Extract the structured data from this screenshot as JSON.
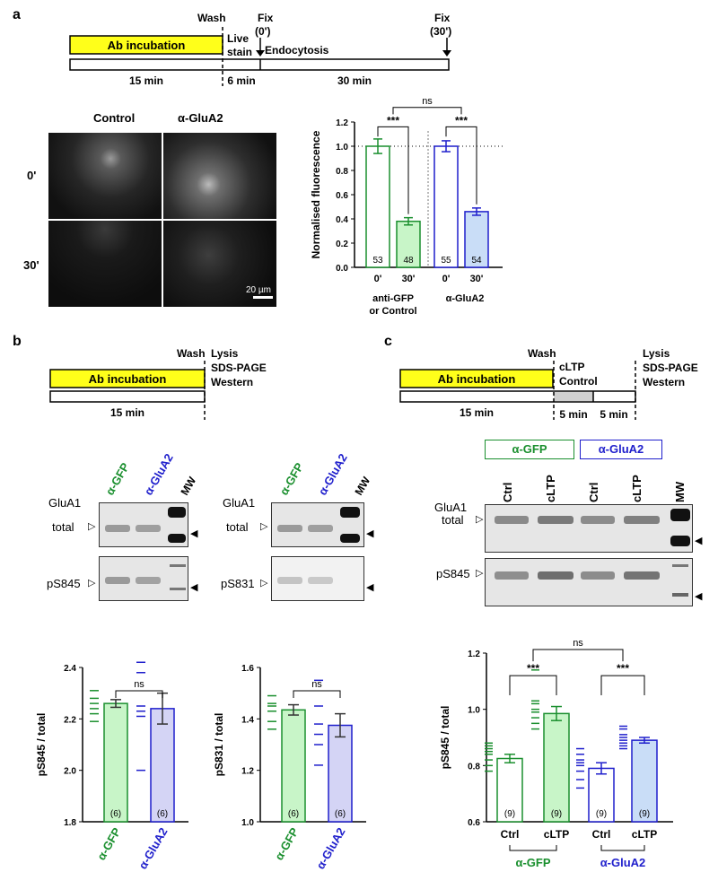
{
  "panel_a": {
    "letter": "a",
    "timeline": {
      "ab_incubation": "Ab incubation",
      "wash": "Wash",
      "live_stain_1": "Live",
      "live_stain_2": "stain",
      "fix0_1": "Fix",
      "fix0_2": "(0')",
      "endocytosis": "Endocytosis",
      "fix30_1": "Fix",
      "fix30_2": "(30')",
      "d1": "15 min",
      "d2": "6 min",
      "d3": "30 min"
    },
    "micrographs": {
      "col_control": "Control",
      "col_aglua2": "α-GluA2",
      "row_0": "0'",
      "row_30": "30'",
      "scale": "20 µm"
    },
    "chart_data": {
      "type": "bar",
      "ylabel": "Normalised fluorescence",
      "ylim": [
        0,
        1.2
      ],
      "yticks": [
        "0.0",
        "0.2",
        "0.4",
        "0.6",
        "0.8",
        "1.0",
        "1.2"
      ],
      "categories": [
        "0'",
        "30'",
        "0'",
        "30'"
      ],
      "values": [
        1.0,
        0.38,
        1.0,
        0.46
      ],
      "errors": [
        0.06,
        0.03,
        0.045,
        0.03
      ],
      "n": [
        "53",
        "48",
        "55",
        "54"
      ],
      "group_labels": [
        "anti-GFP",
        "or Control",
        "α-GluA2"
      ],
      "significance": [
        "***",
        "***",
        "ns"
      ],
      "reference_line": 1.0,
      "colors": [
        "#1a8f2e",
        "#1a8f2e",
        "#1f1fcc",
        "#1f1fcc"
      ]
    }
  },
  "panel_b": {
    "letter": "b",
    "timeline": {
      "ab_incubation": "Ab incubation",
      "wash": "Wash",
      "lysis": "Lysis",
      "sds": "SDS-PAGE",
      "western": "Western",
      "d1": "15 min"
    },
    "blot_left": {
      "lane1": "α-GFP",
      "lane2": "α-GluA2",
      "lane3": "MW",
      "glua1": "GluA1",
      "total": "total",
      "phospho": "pS845"
    },
    "blot_right": {
      "lane1": "α-GFP",
      "lane2": "α-GluA2",
      "lane3": "MW",
      "glua1": "GluA1",
      "total": "total",
      "phospho": "pS831"
    },
    "chart_left": {
      "type": "bar",
      "ylabel": "pS845 / total",
      "ylim": [
        1.8,
        2.4
      ],
      "yticks": [
        "1.8",
        "2.0",
        "2.2",
        "2.4"
      ],
      "categories": [
        "α-GFP",
        "α-GluA2"
      ],
      "values": [
        2.26,
        2.24
      ],
      "errors": [
        0.015,
        0.06
      ],
      "n": [
        "(6)",
        "(6)"
      ],
      "points": [
        [
          2.19,
          2.22,
          2.24,
          2.26,
          2.28,
          2.31
        ],
        [
          2.0,
          2.21,
          2.23,
          2.25,
          2.38,
          2.42
        ]
      ],
      "significance": "ns"
    },
    "chart_right": {
      "type": "bar",
      "ylabel": "pS831 / total",
      "ylim": [
        1.0,
        1.6
      ],
      "yticks": [
        "1.0",
        "1.2",
        "1.4",
        "1.6"
      ],
      "categories": [
        "α-GFP",
        "α-GluA2"
      ],
      "values": [
        1.435,
        1.375
      ],
      "errors": [
        0.02,
        0.045
      ],
      "n": [
        "(6)",
        "(6)"
      ],
      "points": [
        [
          1.36,
          1.39,
          1.43,
          1.45,
          1.46,
          1.49
        ],
        [
          1.22,
          1.3,
          1.34,
          1.38,
          1.45,
          1.55
        ]
      ],
      "significance": "ns"
    }
  },
  "panel_c": {
    "letter": "c",
    "timeline": {
      "ab_incubation": "Ab incubation",
      "wash": "Wash",
      "cltp": "cLTP",
      "control": "Control",
      "lysis": "Lysis",
      "sds": "SDS-PAGE",
      "western": "Western",
      "d1": "15 min",
      "d2": "5 min",
      "d3": "5 min"
    },
    "blot": {
      "box_gfp": "α-GFP",
      "box_glua2": "α-GluA2",
      "lanes": [
        "Ctrl",
        "cLTP",
        "Ctrl",
        "cLTP",
        "MW"
      ],
      "glua1": "GluA1",
      "total": "total",
      "phospho": "pS845"
    },
    "chart_data": {
      "type": "bar",
      "ylabel": "pS845 / total",
      "ylim": [
        0.6,
        1.2
      ],
      "yticks": [
        "0.6",
        "0.8",
        "1.0",
        "1.2"
      ],
      "categories": [
        "Ctrl",
        "cLTP",
        "Ctrl",
        "cLTP"
      ],
      "values": [
        0.825,
        0.985,
        0.79,
        0.89
      ],
      "errors": [
        0.015,
        0.025,
        0.02,
        0.01
      ],
      "n": [
        "(9)",
        "(9)",
        "(9)",
        "(9)"
      ],
      "filled": [
        false,
        true,
        false,
        true
      ],
      "group_labels": [
        "α-GFP",
        "α-GluA2"
      ],
      "significance": [
        "***",
        "***",
        "ns"
      ],
      "colors": [
        "#1a8f2e",
        "#1a8f2e",
        "#1f1fcc",
        "#1f1fcc"
      ]
    }
  }
}
